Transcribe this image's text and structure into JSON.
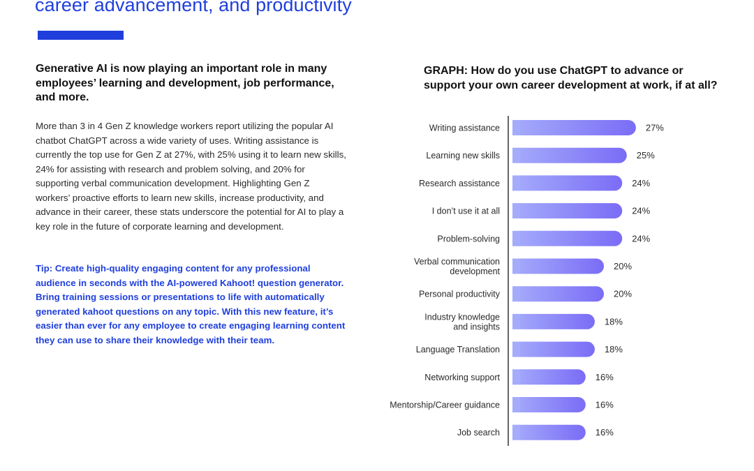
{
  "page": {
    "top_title": "career advancement, and productivity",
    "left_heading": "Generative AI is now playing an important role in many employees’ learning and development, job performance, and more.",
    "left_body": "More than 3 in 4 Gen Z knowledge workers report utilizing the popular AI chatbot ChatGPT across a wide variety of uses. Writing assistance is currently the top use for Gen Z at 27%, with 25% using it to learn new skills, 24% for assisting with research and problem solving, and 20% for supporting verbal communication development. Highlighting Gen Z workers’ proactive efforts to learn new skills, increase productivity, and advance in their career, these stats underscore the potential for AI to play a key role in the future of corporate learning and development.",
    "tip": "Tip: Create high-quality engaging content for any professional audience in seconds with the AI-powered Kahoot! question generator. Bring training sessions or presentations to life with automatically generated kahoot questions on any topic. With this new feature, it’s easier than ever for any employee to create engaging learning content they can use to share their knowledge with their team.",
    "accent_color": "#1f3fdc"
  },
  "chart_data": {
    "type": "bar",
    "orientation": "horizontal",
    "title": "GRAPH: How do you use ChatGPT to advance or support your own career development at work, if at all?",
    "categories": [
      "Writing assistance",
      "Learning new skills",
      "Research assistance",
      "I don’t use it at all",
      "Problem-solving",
      "Verbal communication development",
      "Personal productivity",
      "Industry knowledge and insights",
      "Language Translation",
      "Networking support",
      "Mentorship/Career guidance",
      "Job search"
    ],
    "values": [
      27,
      25,
      24,
      24,
      24,
      20,
      20,
      18,
      18,
      16,
      16,
      16
    ],
    "value_labels": [
      "27%",
      "25%",
      "24%",
      "24%",
      "24%",
      "20%",
      "20%",
      "18%",
      "18%",
      "16%",
      "16%",
      "16%"
    ],
    "colors": {
      "bar_start": "#a5acfb",
      "bar_end": "#7a6cf6",
      "axis": "#333333"
    }
  }
}
